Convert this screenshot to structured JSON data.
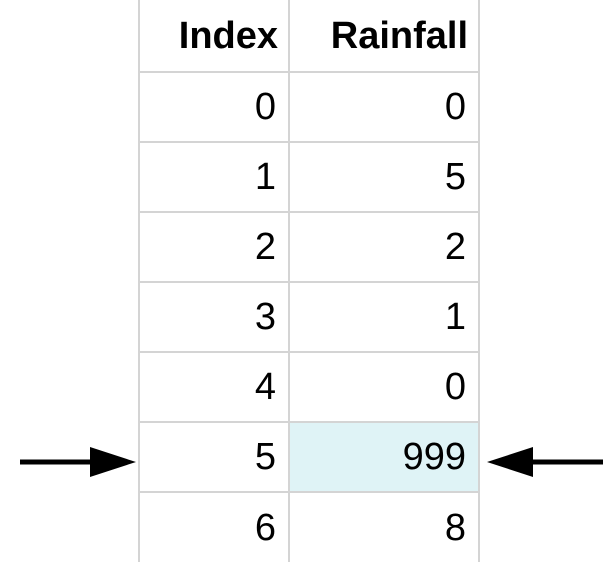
{
  "table": {
    "headers": [
      "Index",
      "Rainfall"
    ],
    "rows": [
      {
        "index": "0",
        "rainfall": "0"
      },
      {
        "index": "1",
        "rainfall": "5"
      },
      {
        "index": "2",
        "rainfall": "2"
      },
      {
        "index": "3",
        "rainfall": "1"
      },
      {
        "index": "4",
        "rainfall": "0"
      },
      {
        "index": "5",
        "rainfall": "999"
      },
      {
        "index": "6",
        "rainfall": "8"
      }
    ]
  },
  "highlight": {
    "row": 5,
    "color": "#dff3f6"
  },
  "arrows": {
    "color": "#000000",
    "left_icon": "arrow-right-icon",
    "right_icon": "arrow-left-icon"
  }
}
